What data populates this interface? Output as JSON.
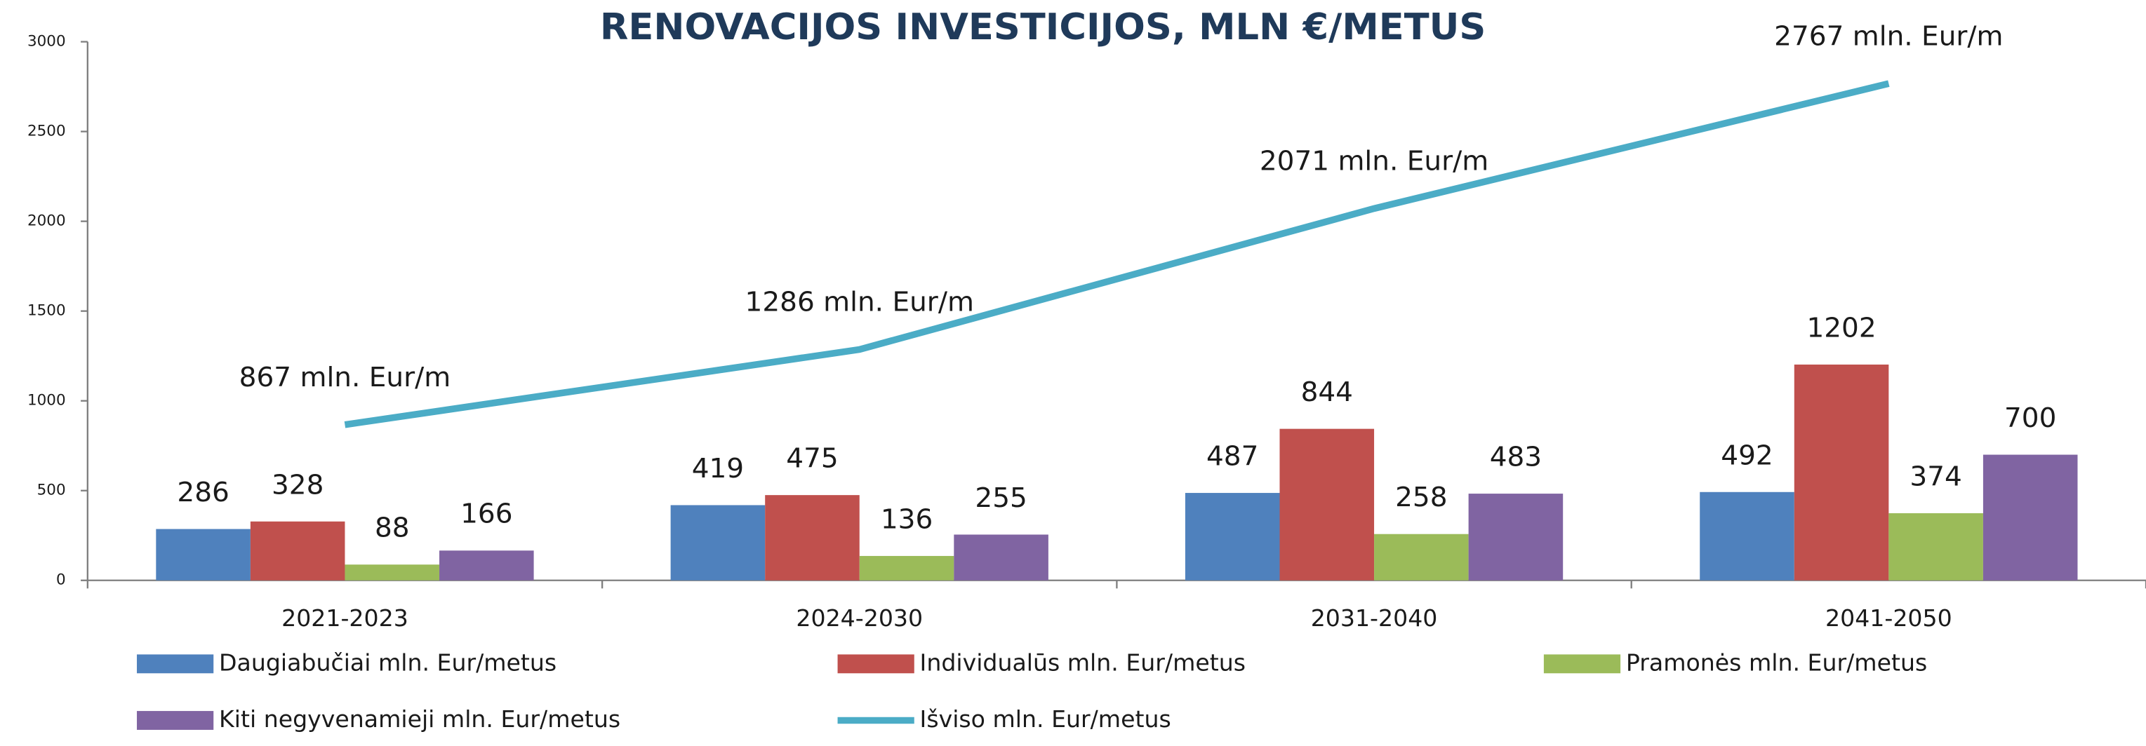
{
  "chart_data": {
    "type": "bar",
    "title": "RENOVACIJOS INVESTICIJOS, MLN €/METUS",
    "categories": [
      "2021-2023",
      "2024-2030",
      "2031-2040",
      "2041-2050"
    ],
    "ylim": [
      0,
      3000
    ],
    "yticks": [
      0,
      500,
      1000,
      1500,
      2000,
      2500,
      3000
    ],
    "grid": false,
    "legend": "bottom",
    "series": [
      {
        "name": "Daugiabučiai mln. Eur/metus",
        "color": "#4f81bd",
        "values": [
          286,
          419,
          487,
          492
        ]
      },
      {
        "name": "Individualūs  mln. Eur/metus",
        "color": "#c0504d",
        "values": [
          328,
          475,
          844,
          1202
        ]
      },
      {
        "name": "Pramonės mln. Eur/metus",
        "color": "#9bbb59",
        "values": [
          88,
          136,
          258,
          374
        ]
      },
      {
        "name": "Kiti negyvenamieji mln. Eur/metus",
        "color": "#8064a2",
        "values": [
          166,
          255,
          483,
          700
        ]
      },
      {
        "name": "Išviso mln. Eur/metus",
        "color": "#4bacc6",
        "type": "line",
        "values": [
          867,
          1286,
          2071,
          2767
        ],
        "value_labels": [
          "867 mln. Eur/m",
          "1286 mln. Eur/m",
          "2071 mln. Eur/m",
          "2767 mln. Eur/m"
        ]
      }
    ]
  }
}
